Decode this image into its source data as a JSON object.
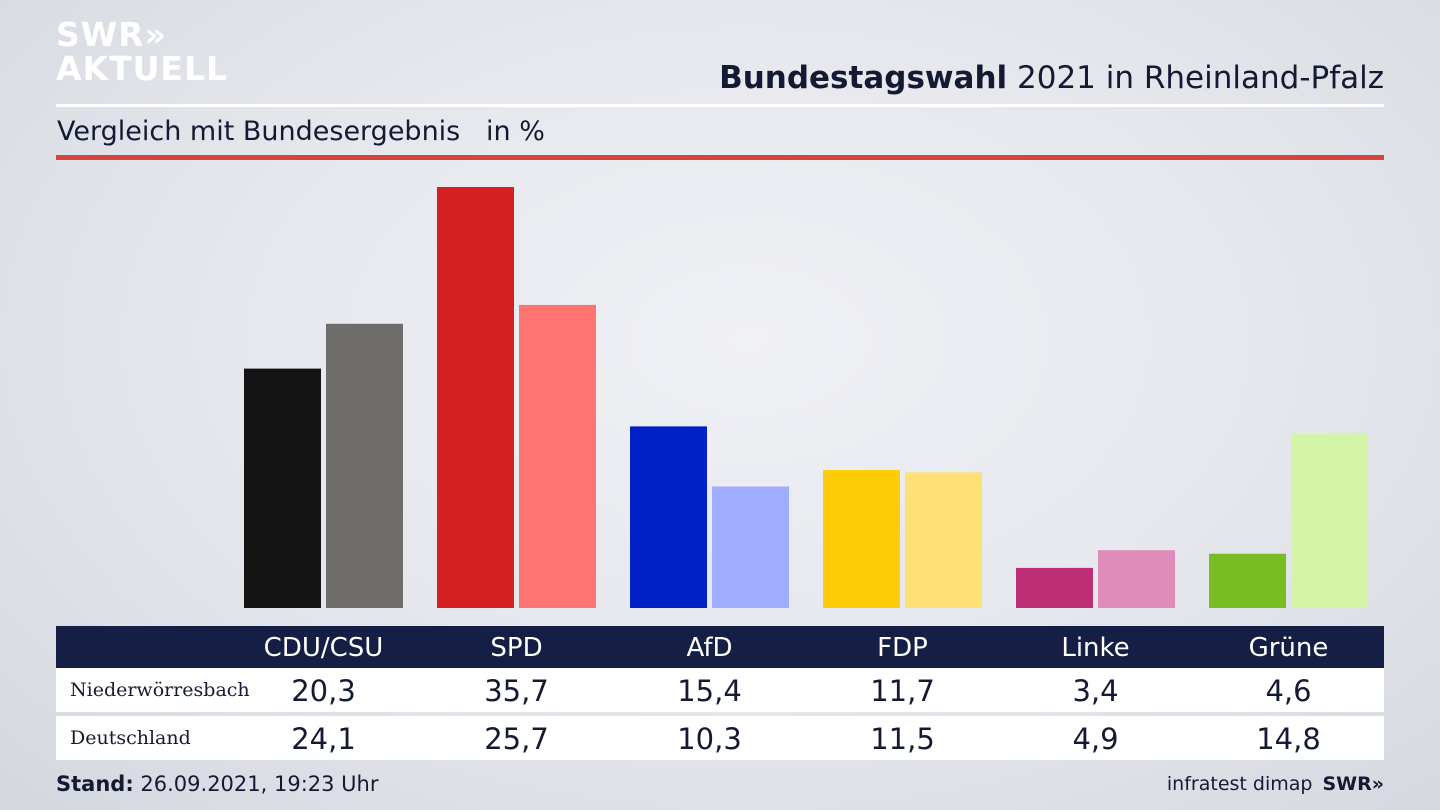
{
  "brand": {
    "logo_line1": "SWR",
    "logo_chevrons": "»",
    "logo_line2": "AKTUELL"
  },
  "header": {
    "title_bold": "Bundestagswahl",
    "title_rest": " 2021 in Rheinland-Pfalz",
    "subtitle": "Vergleich mit Bundesergebnis   in %"
  },
  "chart_data": {
    "type": "bar",
    "title": "Bundestagswahl 2021 in Rheinland-Pfalz",
    "subtitle": "Vergleich mit Bundesergebnis in %",
    "categories": [
      "CDU/CSU",
      "SPD",
      "AfD",
      "FDP",
      "Linke",
      "Grüne"
    ],
    "series": [
      {
        "name": "Niederwörresbach",
        "values": [
          20.3,
          35.7,
          15.4,
          11.7,
          3.4,
          4.6
        ],
        "colors": [
          "#141414",
          "#d42020",
          "#0021c8",
          "#ffcc0a",
          "#bd2e74",
          "#78bd22"
        ]
      },
      {
        "name": "Deutschland",
        "values": [
          24.1,
          25.7,
          10.3,
          11.5,
          4.9,
          14.8
        ],
        "colors": [
          "#6f6d6b",
          "#ff7470",
          "#9eadff",
          "#ffe074",
          "#e08cba",
          "#d4f5a8"
        ]
      }
    ],
    "ylim": [
      0,
      35.7
    ],
    "grid": false
  },
  "table": {
    "headers": [
      "CDU/CSU",
      "SPD",
      "AfD",
      "FDP",
      "Linke",
      "Grüne"
    ],
    "rows": [
      {
        "label": "Niederwörresbach",
        "values": [
          "20,3",
          "35,7",
          "15,4",
          "11,7",
          "3,4",
          "4,6"
        ]
      },
      {
        "label": "Deutschland",
        "values": [
          "24,1",
          "25,7",
          "10,3",
          "11,5",
          "4,9",
          "14,8"
        ]
      }
    ]
  },
  "footer": {
    "stand_label": "Stand:",
    "stand_value": " 26.09.2021, 19:23 Uhr",
    "source": "infratest dimap",
    "brand": "SWR»"
  }
}
